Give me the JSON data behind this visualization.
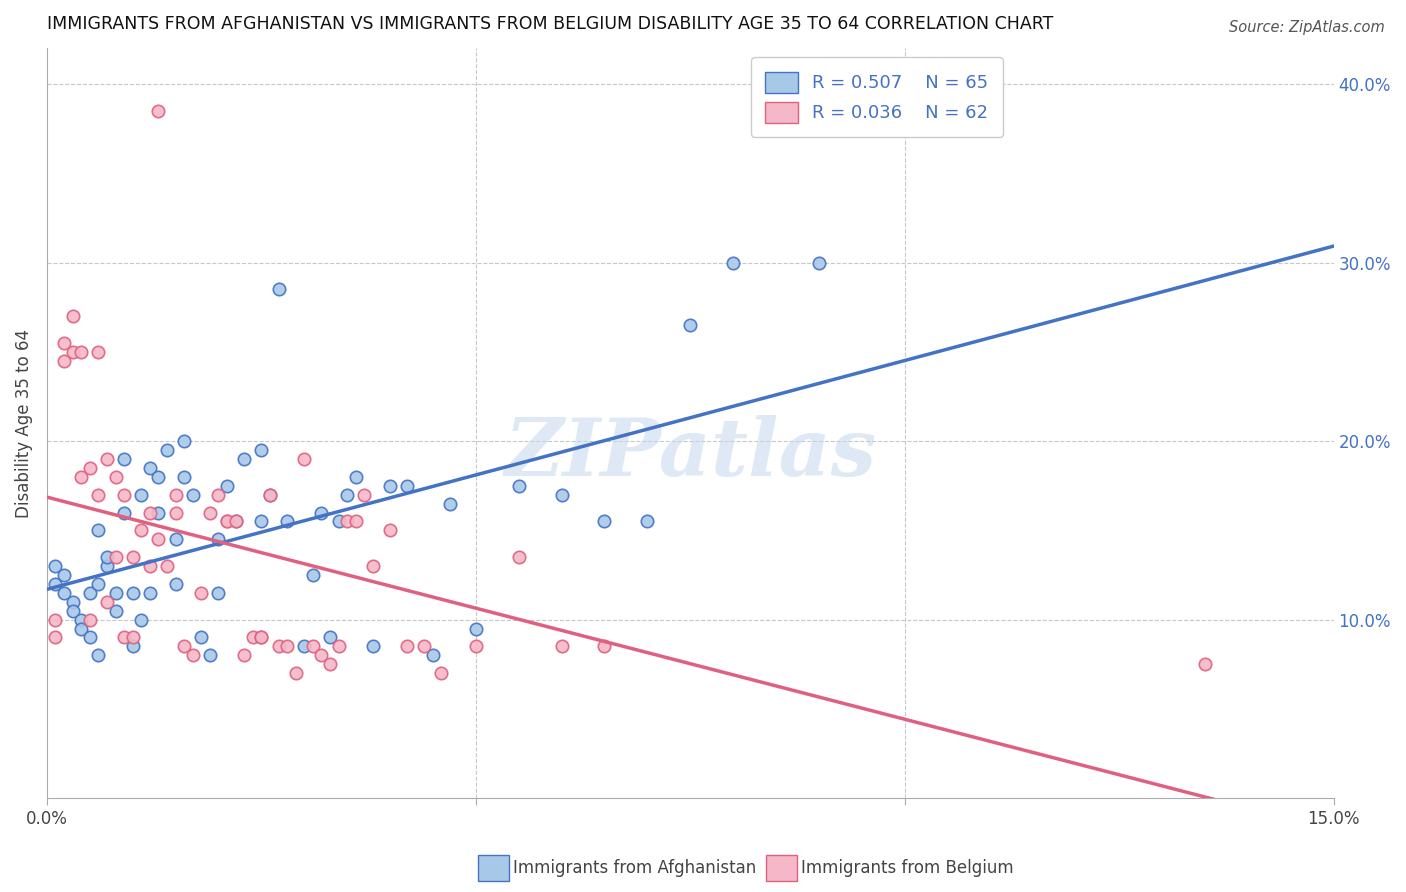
{
  "title": "IMMIGRANTS FROM AFGHANISTAN VS IMMIGRANTS FROM BELGIUM DISABILITY AGE 35 TO 64 CORRELATION CHART",
  "source": "Source: ZipAtlas.com",
  "ylabel": "Disability Age 35 to 64",
  "xmin": 0.0,
  "xmax": 0.15,
  "ymin": 0.0,
  "ymax": 0.42,
  "color_afghanistan": "#a8c8e8",
  "color_belgium": "#f4b8c8",
  "color_afghanistan_line": "#4472c4",
  "color_belgium_line": "#e06080",
  "color_afghanistan_edge": "#4472c4",
  "color_belgium_edge": "#e06080",
  "watermark": "ZIPatlas",
  "background_color": "#ffffff",
  "grid_color": "#c8c8c8",
  "afghanistan_x": [
    0.001,
    0.001,
    0.002,
    0.002,
    0.003,
    0.003,
    0.004,
    0.004,
    0.005,
    0.005,
    0.006,
    0.006,
    0.006,
    0.007,
    0.007,
    0.008,
    0.008,
    0.009,
    0.009,
    0.01,
    0.01,
    0.011,
    0.011,
    0.012,
    0.012,
    0.013,
    0.013,
    0.014,
    0.015,
    0.015,
    0.016,
    0.016,
    0.017,
    0.018,
    0.019,
    0.02,
    0.02,
    0.021,
    0.022,
    0.023,
    0.025,
    0.025,
    0.026,
    0.027,
    0.028,
    0.03,
    0.031,
    0.032,
    0.033,
    0.034,
    0.035,
    0.036,
    0.038,
    0.04,
    0.042,
    0.045,
    0.047,
    0.05,
    0.055,
    0.06,
    0.065,
    0.07,
    0.075,
    0.08,
    0.09
  ],
  "afghanistan_y": [
    0.13,
    0.12,
    0.115,
    0.125,
    0.11,
    0.105,
    0.1,
    0.095,
    0.09,
    0.115,
    0.12,
    0.15,
    0.08,
    0.13,
    0.135,
    0.115,
    0.105,
    0.16,
    0.19,
    0.085,
    0.115,
    0.1,
    0.17,
    0.115,
    0.185,
    0.16,
    0.18,
    0.195,
    0.12,
    0.145,
    0.18,
    0.2,
    0.17,
    0.09,
    0.08,
    0.145,
    0.115,
    0.175,
    0.155,
    0.19,
    0.155,
    0.195,
    0.17,
    0.285,
    0.155,
    0.085,
    0.125,
    0.16,
    0.09,
    0.155,
    0.17,
    0.18,
    0.085,
    0.175,
    0.175,
    0.08,
    0.165,
    0.095,
    0.175,
    0.17,
    0.155,
    0.155,
    0.265,
    0.3,
    0.3
  ],
  "belgium_x": [
    0.001,
    0.001,
    0.002,
    0.002,
    0.003,
    0.003,
    0.004,
    0.004,
    0.005,
    0.005,
    0.006,
    0.006,
    0.007,
    0.007,
    0.008,
    0.008,
    0.009,
    0.009,
    0.01,
    0.01,
    0.011,
    0.012,
    0.012,
    0.013,
    0.013,
    0.014,
    0.015,
    0.015,
    0.016,
    0.017,
    0.018,
    0.019,
    0.02,
    0.021,
    0.021,
    0.022,
    0.023,
    0.024,
    0.025,
    0.025,
    0.026,
    0.027,
    0.028,
    0.029,
    0.03,
    0.031,
    0.032,
    0.033,
    0.034,
    0.035,
    0.036,
    0.037,
    0.038,
    0.04,
    0.042,
    0.044,
    0.046,
    0.05,
    0.055,
    0.06,
    0.065,
    0.135
  ],
  "belgium_y": [
    0.09,
    0.1,
    0.245,
    0.255,
    0.25,
    0.27,
    0.25,
    0.18,
    0.1,
    0.185,
    0.25,
    0.17,
    0.11,
    0.19,
    0.18,
    0.135,
    0.09,
    0.17,
    0.09,
    0.135,
    0.15,
    0.16,
    0.13,
    0.145,
    0.385,
    0.13,
    0.17,
    0.16,
    0.085,
    0.08,
    0.115,
    0.16,
    0.17,
    0.155,
    0.155,
    0.155,
    0.08,
    0.09,
    0.09,
    0.09,
    0.17,
    0.085,
    0.085,
    0.07,
    0.19,
    0.085,
    0.08,
    0.075,
    0.085,
    0.155,
    0.155,
    0.17,
    0.13,
    0.15,
    0.085,
    0.085,
    0.07,
    0.085,
    0.135,
    0.085,
    0.085,
    0.075
  ]
}
